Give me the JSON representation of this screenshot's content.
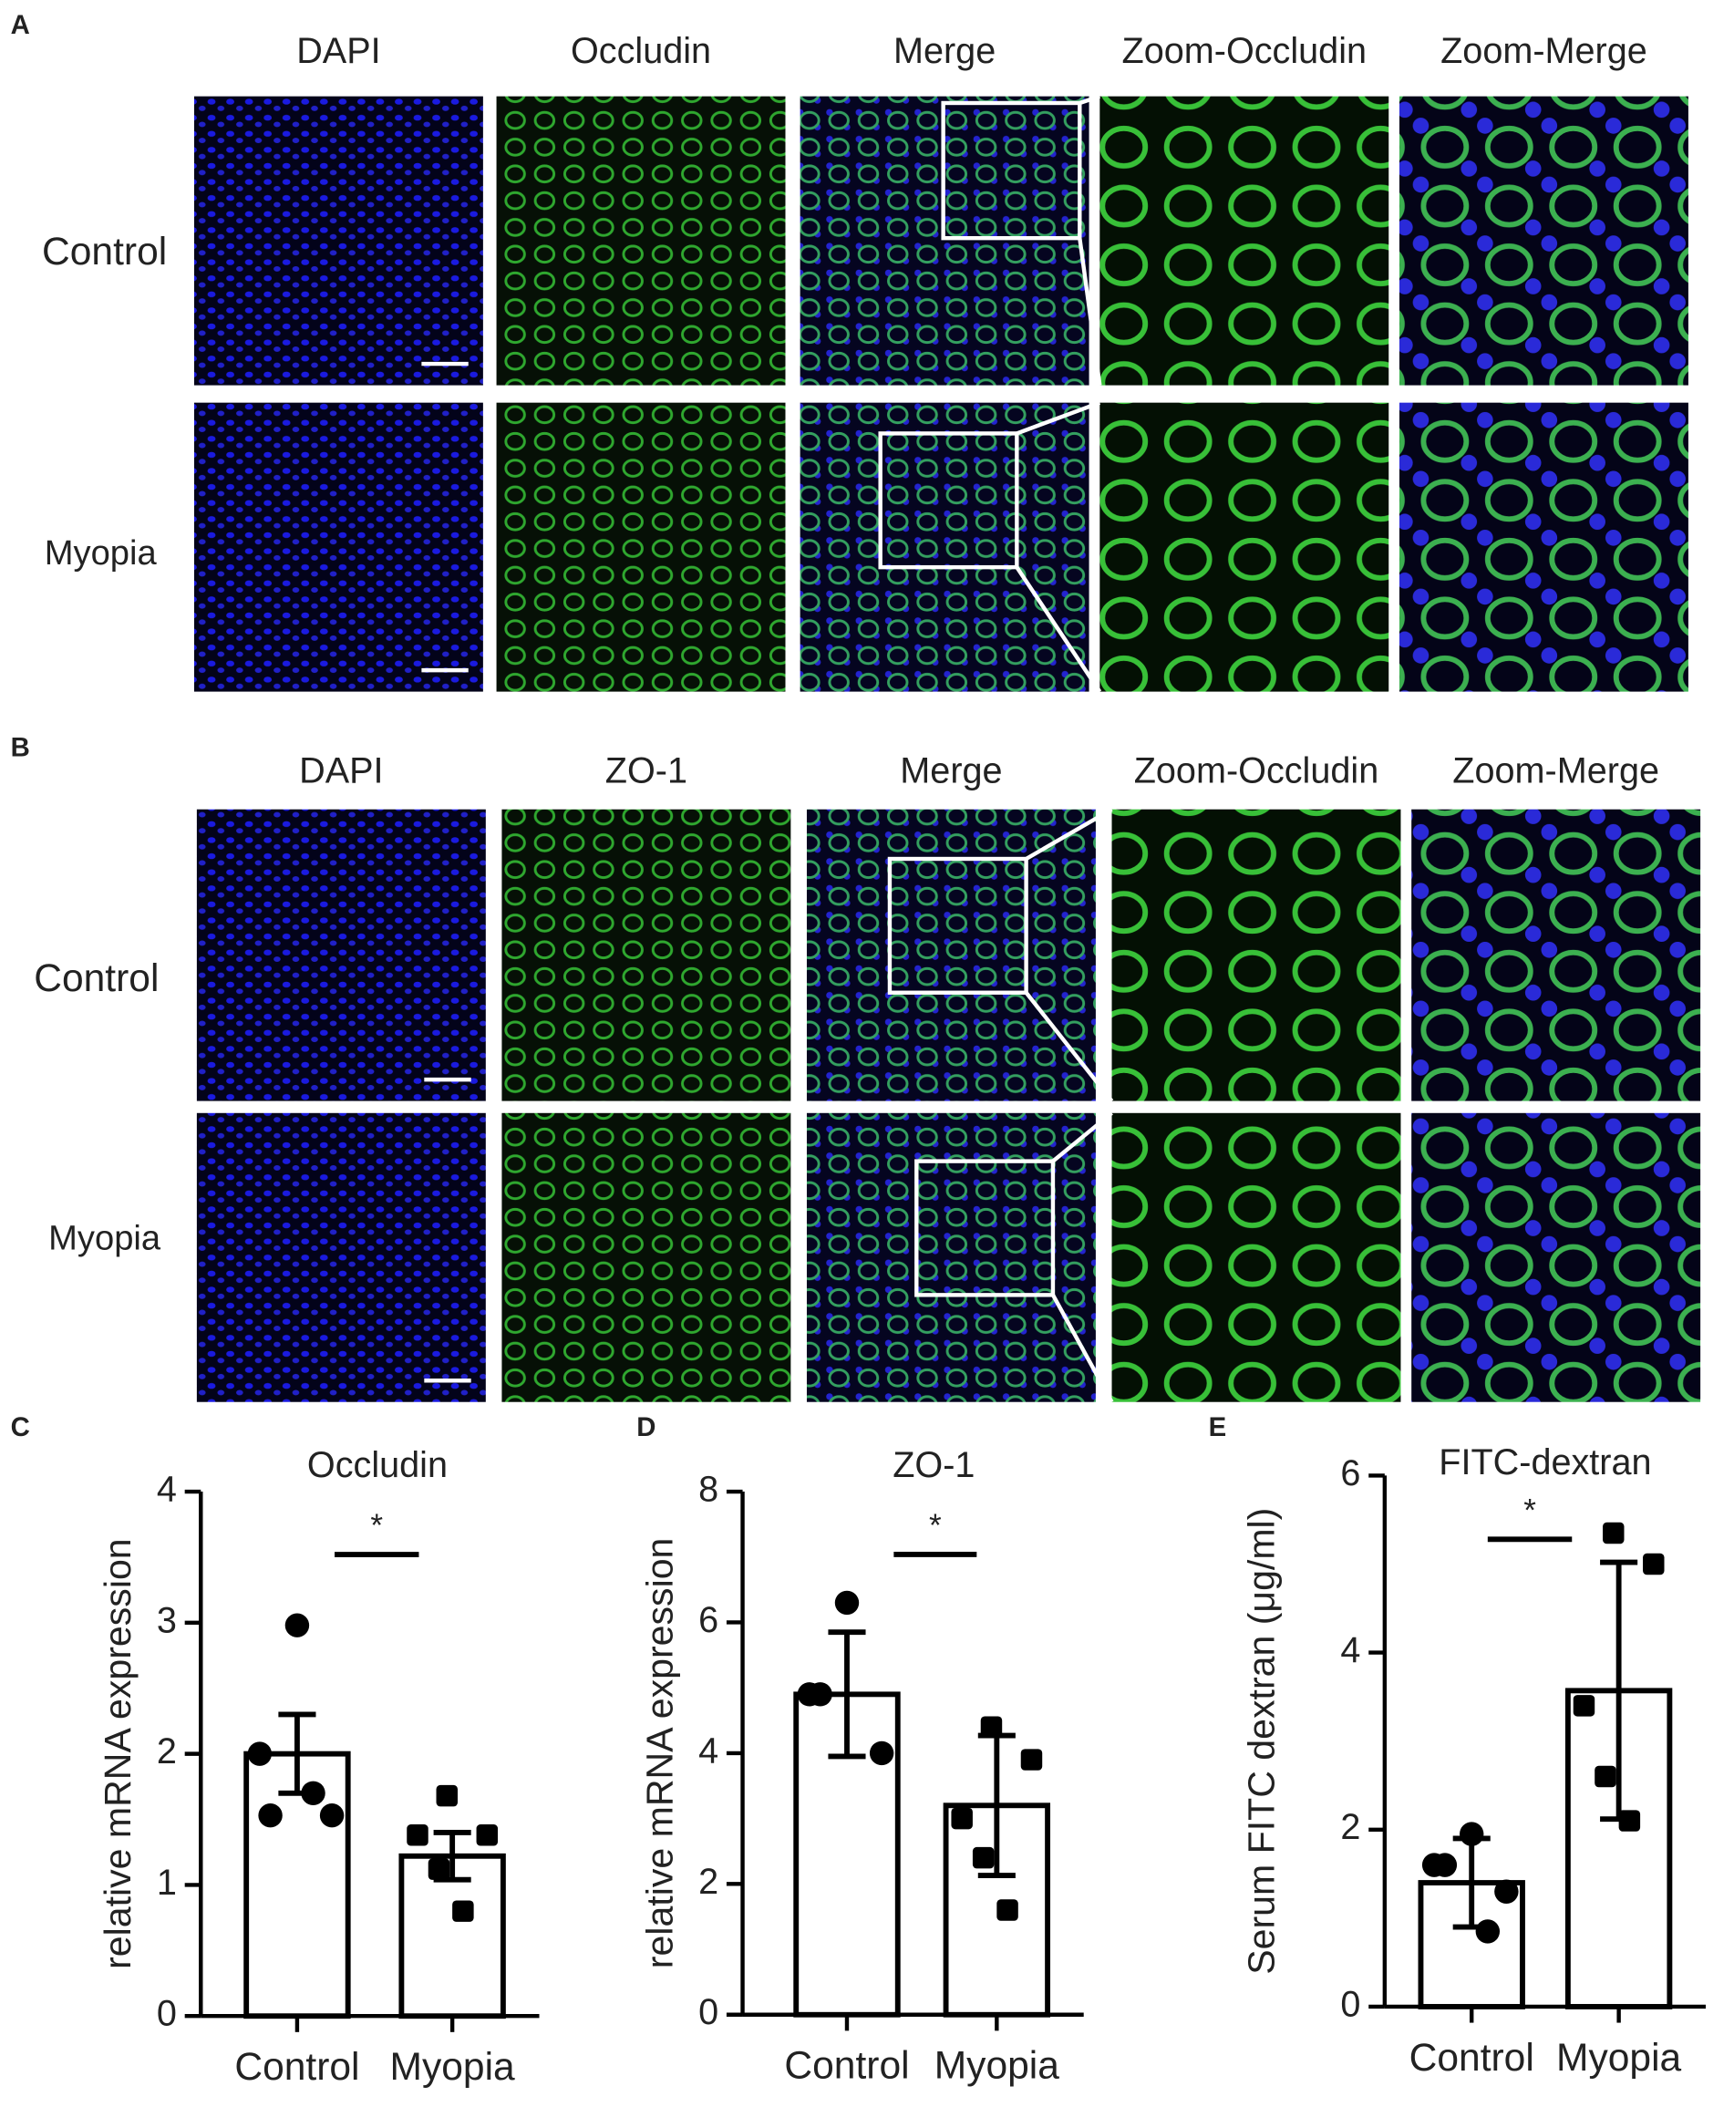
{
  "figure": {
    "panels": [
      {
        "label": "A",
        "columns": [
          "DAPI",
          "Occludin",
          "Merge",
          "Zoom-Occludin",
          "Zoom-Merge"
        ],
        "rows": [
          "Control",
          "Myopia"
        ]
      },
      {
        "label": "B",
        "columns": [
          "DAPI",
          "ZO-1",
          "Merge",
          "Zoom-Occludin",
          "Zoom-Merge"
        ],
        "rows": [
          "Control",
          "Myopia"
        ]
      }
    ]
  },
  "chart_data": [
    {
      "type": "bar",
      "panel_label": "C",
      "title": "Occludin",
      "ylabel": "relative mRNA expression",
      "categories": [
        "Control",
        "Myopia"
      ],
      "values": [
        2.0,
        1.22
      ],
      "errors": [
        0.3,
        0.18
      ],
      "points": [
        [
          2.98,
          2.0,
          1.53,
          1.53,
          1.7
        ],
        [
          1.68,
          1.38,
          1.38,
          1.12,
          0.8
        ]
      ],
      "significance": "*",
      "ylim": [
        0,
        4
      ],
      "yticks": [
        0,
        1,
        2,
        3,
        4
      ],
      "color": "#ffffff"
    },
    {
      "type": "bar",
      "panel_label": "D",
      "title": "ZO-1",
      "ylabel": "relative mRNA expression",
      "categories": [
        "Control",
        "Myopia"
      ],
      "values": [
        4.9,
        3.2
      ],
      "errors": [
        0.95,
        1.07
      ],
      "points": [
        [
          6.3,
          4.9,
          4.9,
          4.0
        ],
        [
          4.4,
          3.9,
          3.0,
          2.4,
          1.6
        ]
      ],
      "significance": "*",
      "ylim": [
        0,
        8
      ],
      "yticks": [
        0,
        2,
        4,
        6,
        8
      ],
      "color": "#ffffff"
    },
    {
      "type": "bar",
      "panel_label": "E",
      "title": "FITC-dextran",
      "ylabel": "Serum FITC dextran (μg/ml)",
      "categories": [
        "Control",
        "Myopia"
      ],
      "values": [
        1.4,
        3.57
      ],
      "errors": [
        0.5,
        1.45
      ],
      "points": [
        [
          1.95,
          1.6,
          1.6,
          1.3,
          0.85
        ],
        [
          5.35,
          5.0,
          3.4,
          2.6,
          2.1
        ]
      ],
      "significance": "*",
      "ylim": [
        0,
        6
      ],
      "yticks": [
        0,
        2,
        4,
        6
      ],
      "color": "#ffffff"
    }
  ]
}
